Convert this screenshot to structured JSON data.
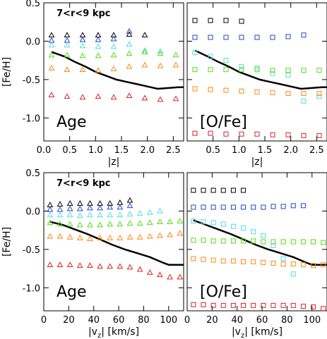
{
  "chart_data": [
    {
      "type": "scatter",
      "panel": "top-left",
      "annotation": "7<r<9 kpc",
      "label": "Age",
      "xlabel": "|z|",
      "ylabel": "[Fe/H]",
      "xlim": [
        0,
        2.7
      ],
      "ylim": [
        -1.3,
        0.5
      ],
      "xticks": [
        "0.0",
        "0.5",
        "1.0",
        "1.5",
        "2.0",
        "2.5"
      ],
      "yticks": [
        "0.5",
        "0.0",
        "-0.5",
        "-1.0"
      ],
      "marker": "triangle",
      "series": [
        {
          "color": "#000000",
          "x": [
            0.15,
            0.45,
            0.75,
            1.05,
            1.35,
            1.65,
            1.95
          ],
          "values": [
            0.08,
            0.08,
            0.08,
            0.08,
            0.08,
            0.09,
            0.08
          ]
        },
        {
          "color": "#2244cc",
          "x": [
            0.15,
            0.45,
            0.75,
            1.05,
            1.35,
            1.65
          ],
          "values": [
            0.01,
            0.01,
            0.02,
            0.02,
            0.03,
            0.13
          ]
        },
        {
          "color": "#55dddd",
          "x": [
            0.15,
            0.45,
            0.75,
            1.05,
            1.35,
            1.65,
            1.95,
            2.25
          ],
          "values": [
            -0.05,
            -0.05,
            -0.06,
            -0.07,
            -0.07,
            -0.04,
            -0.12,
            -0.13
          ]
        },
        {
          "color": "#55dd11",
          "x": [
            0.15,
            0.45,
            0.75,
            1.05,
            1.35,
            1.65,
            1.95,
            2.25,
            2.55
          ],
          "values": [
            -0.18,
            -0.18,
            -0.19,
            -0.19,
            -0.18,
            -0.16,
            -0.14,
            -0.16,
            -0.18
          ]
        },
        {
          "color": "#ff8811",
          "x": [
            0.15,
            0.45,
            0.75,
            1.05,
            1.35,
            1.65,
            1.95,
            2.25,
            2.55
          ],
          "values": [
            -0.35,
            -0.37,
            -0.37,
            -0.38,
            -0.36,
            -0.33,
            -0.31,
            -0.32,
            -0.31
          ]
        },
        {
          "color": "#dd2222",
          "x": [
            0.15,
            0.45,
            0.75,
            1.05,
            1.35,
            1.65,
            1.95,
            2.25,
            2.55
          ],
          "values": [
            -0.7,
            -0.72,
            -0.73,
            -0.72,
            -0.73,
            -0.71,
            -0.74,
            -0.76,
            -0.75
          ]
        }
      ],
      "mean_line": {
        "x": [
          0.15,
          0.4,
          0.6,
          0.8,
          1.0,
          1.2,
          1.4,
          1.6,
          1.8,
          2.0,
          2.2,
          2.4,
          2.6,
          2.7
        ],
        "values": [
          -0.14,
          -0.2,
          -0.27,
          -0.33,
          -0.4,
          -0.45,
          -0.5,
          -0.53,
          -0.56,
          -0.59,
          -0.62,
          -0.61,
          -0.6,
          -0.6
        ]
      }
    },
    {
      "type": "scatter",
      "panel": "top-right",
      "label": "[O/Fe]",
      "xlabel": "|z|",
      "xlim": [
        0,
        2.7
      ],
      "ylim": [
        -1.3,
        0.5
      ],
      "xticks": [
        "0.5",
        "1.0",
        "1.5",
        "2.0",
        "2.5"
      ],
      "marker": "square",
      "series": [
        {
          "color": "#000000",
          "x": [
            0.15,
            0.45,
            0.75,
            1.05
          ],
          "values": [
            0.27,
            0.27,
            0.27,
            0.26
          ]
        },
        {
          "color": "#2244cc",
          "x": [
            0.15,
            0.45,
            0.75,
            1.05,
            1.35,
            1.65,
            1.95,
            2.25
          ],
          "values": [
            0.05,
            0.05,
            0.05,
            0.05,
            0.05,
            0.05,
            0.06,
            0.08
          ]
        },
        {
          "color": "#55dddd",
          "x": [
            0.15,
            0.45,
            0.75,
            1.05,
            1.35,
            1.65,
            1.95,
            2.25,
            2.55
          ],
          "values": [
            -0.15,
            -0.2,
            -0.25,
            -0.33,
            -0.35,
            -0.42,
            -0.44,
            -0.78,
            -0.72
          ]
        },
        {
          "color": "#55dd11",
          "x": [
            0.15,
            0.45,
            0.75,
            1.05,
            1.35,
            1.65,
            1.95,
            2.25,
            2.55
          ],
          "values": [
            -0.37,
            -0.37,
            -0.37,
            -0.37,
            -0.37,
            -0.38,
            -0.38,
            -0.38,
            -0.38
          ]
        },
        {
          "color": "#ff8811",
          "x": [
            0.15,
            0.45,
            0.75,
            1.05,
            1.35,
            1.65,
            1.95,
            2.25,
            2.55
          ],
          "values": [
            -0.62,
            -0.63,
            -0.64,
            -0.65,
            -0.66,
            -0.67,
            -0.68,
            -0.68,
            -0.68
          ]
        },
        {
          "color": "#dd2222",
          "x": [
            0.15,
            0.45,
            0.75,
            1.05,
            1.35,
            1.65,
            1.95,
            2.25,
            2.55
          ],
          "values": [
            -1.2,
            -1.2,
            -1.21,
            -1.21,
            -1.21,
            -1.22,
            -1.22,
            -1.23,
            -1.23
          ]
        }
      ],
      "mean_line": {
        "x": [
          0.15,
          0.4,
          0.6,
          0.8,
          1.0,
          1.2,
          1.4,
          1.6,
          1.8,
          2.0,
          2.2,
          2.4,
          2.6,
          2.7
        ],
        "values": [
          -0.12,
          -0.2,
          -0.27,
          -0.33,
          -0.4,
          -0.45,
          -0.5,
          -0.53,
          -0.56,
          -0.59,
          -0.62,
          -0.61,
          -0.6,
          -0.6
        ]
      }
    },
    {
      "type": "scatter",
      "panel": "bottom-left",
      "annotation": "7<r<9 kpc",
      "label": "Age",
      "xlabel": "|v_z| [km/s]",
      "ylabel": "[Fe/H]",
      "xlim": [
        0,
        112
      ],
      "ylim": [
        -1.3,
        0.5
      ],
      "xticks": [
        "0",
        "20",
        "40",
        "60",
        "80",
        "100"
      ],
      "yticks": [
        "0.5",
        "0.0",
        "-0.5",
        "-1.0"
      ],
      "marker": "triangle",
      "series": [
        {
          "color": "#000000",
          "x": [
            5,
            13,
            21,
            29,
            37,
            45,
            53,
            61,
            69
          ],
          "values": [
            0.08,
            0.09,
            0.1,
            0.1,
            0.1,
            0.1,
            0.1,
            0.11,
            0.14
          ]
        },
        {
          "color": "#2244cc",
          "x": [
            5,
            13,
            21,
            29,
            37,
            45,
            53,
            61,
            69
          ],
          "values": [
            0.02,
            0.02,
            0.03,
            0.03,
            0.04,
            0.04,
            0.05,
            0.05,
            0.07
          ]
        },
        {
          "color": "#55dddd",
          "x": [
            5,
            13,
            21,
            29,
            37,
            45,
            53,
            61,
            69,
            77,
            85,
            93
          ],
          "values": [
            -0.05,
            -0.05,
            -0.05,
            -0.06,
            -0.05,
            -0.05,
            -0.05,
            -0.05,
            -0.04,
            -0.03,
            -0.02,
            0.0
          ]
        },
        {
          "color": "#55dd11",
          "x": [
            5,
            13,
            21,
            29,
            37,
            45,
            53,
            61,
            69,
            77,
            85,
            93,
            101,
            109
          ],
          "values": [
            -0.15,
            -0.17,
            -0.17,
            -0.18,
            -0.18,
            -0.18,
            -0.17,
            -0.17,
            -0.16,
            -0.16,
            -0.15,
            -0.14,
            -0.14,
            -0.13
          ]
        },
        {
          "color": "#ff8811",
          "x": [
            5,
            13,
            21,
            29,
            37,
            45,
            53,
            61,
            69,
            77,
            85,
            93,
            101,
            109
          ],
          "values": [
            -0.33,
            -0.33,
            -0.34,
            -0.35,
            -0.36,
            -0.35,
            -0.35,
            -0.35,
            -0.34,
            -0.34,
            -0.33,
            -0.32,
            -0.31,
            -0.29
          ]
        },
        {
          "color": "#dd2222",
          "x": [
            5,
            13,
            21,
            29,
            37,
            45,
            53,
            61,
            69,
            77,
            85,
            93,
            101,
            109
          ],
          "values": [
            -0.7,
            -0.7,
            -0.7,
            -0.71,
            -0.71,
            -0.72,
            -0.72,
            -0.72,
            -0.73,
            -0.76,
            -0.8,
            -0.83,
            -0.86,
            -0.86
          ]
        }
      ],
      "mean_line": {
        "x": [
          5,
          15,
          25,
          35,
          45,
          55,
          65,
          75,
          85,
          95,
          100,
          112
        ],
        "values": [
          -0.14,
          -0.18,
          -0.24,
          -0.3,
          -0.37,
          -0.44,
          -0.5,
          -0.55,
          -0.6,
          -0.67,
          -0.7,
          -0.7
        ]
      }
    },
    {
      "type": "scatter",
      "panel": "bottom-right",
      "label": "[O/Fe]",
      "xlabel": "|v_z| [km/s]",
      "xlim": [
        0,
        112
      ],
      "ylim": [
        -1.3,
        0.5
      ],
      "xticks": [
        "0",
        "20",
        "40",
        "60",
        "80",
        "100"
      ],
      "marker": "square",
      "series": [
        {
          "color": "#000000",
          "x": [
            5,
            13,
            21,
            29,
            37,
            45
          ],
          "values": [
            0.27,
            0.27,
            0.27,
            0.27,
            0.27,
            0.27
          ]
        },
        {
          "color": "#2244cc",
          "x": [
            5,
            13,
            21,
            29,
            37,
            45,
            53,
            61,
            69,
            77,
            85,
            93
          ],
          "values": [
            0.05,
            0.05,
            0.05,
            0.05,
            0.05,
            0.05,
            0.05,
            0.05,
            0.06,
            0.06,
            0.07,
            0.07
          ]
        },
        {
          "color": "#55dddd",
          "x": [
            5,
            13,
            21,
            29,
            37,
            45,
            53,
            61,
            69,
            77,
            85
          ],
          "values": [
            -0.13,
            -0.14,
            -0.15,
            -0.17,
            -0.2,
            -0.22,
            -0.27,
            -0.32,
            -0.45,
            -0.62,
            -0.82
          ]
        },
        {
          "color": "#55dd11",
          "x": [
            5,
            13,
            21,
            29,
            37,
            45,
            53,
            61,
            69,
            77,
            85,
            93,
            101,
            109
          ],
          "values": [
            -0.38,
            -0.38,
            -0.39,
            -0.39,
            -0.39,
            -0.39,
            -0.39,
            -0.4,
            -0.4,
            -0.4,
            -0.4,
            -0.4,
            -0.4,
            -0.41
          ]
        },
        {
          "color": "#ff8811",
          "x": [
            5,
            13,
            21,
            29,
            37,
            45,
            53,
            61,
            69,
            77,
            85,
            93,
            101,
            109
          ],
          "values": [
            -0.62,
            -0.63,
            -0.64,
            -0.65,
            -0.65,
            -0.66,
            -0.66,
            -0.67,
            -0.68,
            -0.69,
            -0.69,
            -0.7,
            -0.71,
            -0.7
          ]
        },
        {
          "color": "#dd2222",
          "x": [
            5,
            13,
            21,
            29,
            37,
            45,
            53,
            61,
            69,
            77,
            85,
            93,
            101,
            109
          ],
          "values": [
            -1.22,
            -1.22,
            -1.23,
            -1.23,
            -1.23,
            -1.23,
            -1.23,
            -1.23,
            -1.23,
            -1.23,
            -1.23,
            -1.24,
            -1.25,
            -1.27
          ]
        }
      ],
      "mean_line": {
        "x": [
          5,
          15,
          25,
          35,
          45,
          55,
          65,
          75,
          85,
          95,
          100,
          112
        ],
        "values": [
          -0.12,
          -0.18,
          -0.24,
          -0.3,
          -0.37,
          -0.44,
          -0.5,
          -0.55,
          -0.6,
          -0.67,
          -0.7,
          -0.7
        ]
      }
    }
  ]
}
